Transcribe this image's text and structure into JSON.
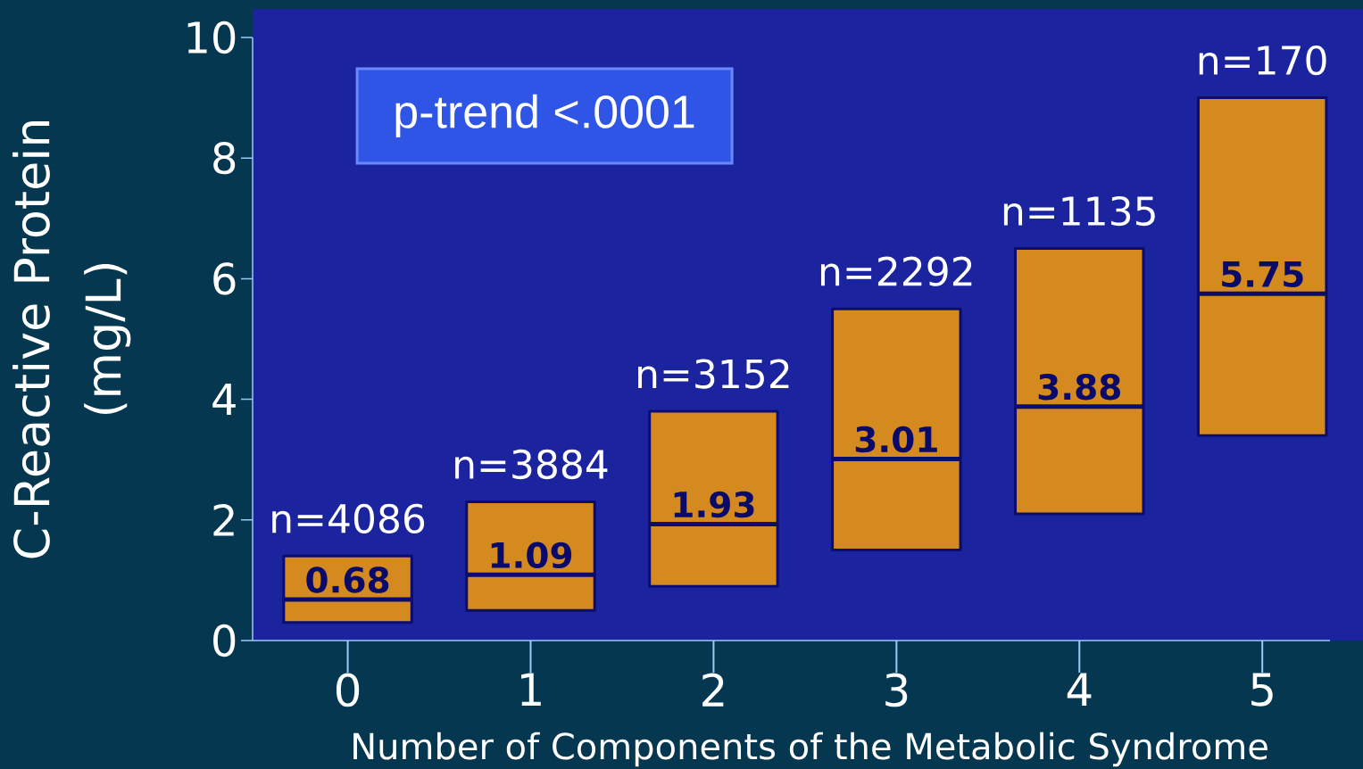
{
  "chart_data": {
    "type": "box",
    "categories": [
      "0",
      "1",
      "2",
      "3",
      "4",
      "5"
    ],
    "color": "#d48a1e",
    "boxes": [
      {
        "low": 0.3,
        "q1": 0.3,
        "median": 0.68,
        "q3": 1.4,
        "high": 1.4
      },
      {
        "low": 0.5,
        "q1": 0.5,
        "median": 1.09,
        "q3": 2.3,
        "high": 2.3
      },
      {
        "low": 0.9,
        "q1": 0.9,
        "median": 1.93,
        "q3": 3.8,
        "high": 3.8
      },
      {
        "low": 1.5,
        "q1": 1.5,
        "median": 3.01,
        "q3": 5.5,
        "high": 5.5
      },
      {
        "low": 2.1,
        "q1": 2.1,
        "median": 3.88,
        "q3": 6.5,
        "high": 6.5
      },
      {
        "low": 3.4,
        "q1": 3.4,
        "median": 5.75,
        "q3": 9.0,
        "high": 9.0
      }
    ],
    "xlabel": "Number of Components of the Metabolic Syndrome",
    "ylabel": "C-Reactive Protein (mg/L)",
    "ylim": [
      0,
      10
    ],
    "yticks": [
      0,
      2,
      4,
      6,
      8,
      10
    ],
    "annotations": [
      {
        "text": "0.68",
        "x": "0",
        "y": 0.68
      },
      {
        "text": "1.09",
        "x": "1",
        "y": 1.09
      },
      {
        "text": "1.93",
        "x": "2",
        "y": 1.93
      },
      {
        "text": "3.01",
        "x": "3",
        "y": 3.01
      },
      {
        "text": "3.88",
        "x": "4",
        "y": 3.88
      },
      {
        "text": "5.75",
        "x": "5",
        "y": 5.75
      },
      {
        "text": "n=4086",
        "x": "0",
        "y": 1.4
      },
      {
        "text": "n=3884",
        "x": "1",
        "y": 2.3
      },
      {
        "text": "n=3152",
        "x": "2",
        "y": 3.8
      },
      {
        "text": "n=2292",
        "x": "3",
        "y": 5.5
      },
      {
        "text": "n=1135",
        "x": "4",
        "y": 6.5
      },
      {
        "text": "n=170",
        "x": "5",
        "y": 9.0
      },
      "p-trend <.0001"
    ]
  }
}
